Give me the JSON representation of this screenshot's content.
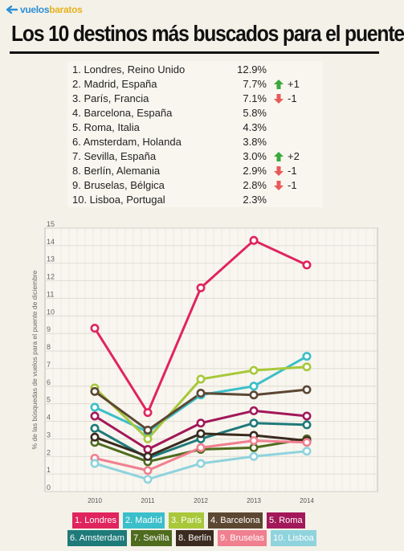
{
  "logo": {
    "part1": "vuelos",
    "part2": "baratos",
    "arrow_color": "#2b8fd6"
  },
  "title": "Los 10 destinos más buscados para el puente",
  "ranking": [
    {
      "label": "1. Londres, Reino Unido",
      "percent": "12.9%",
      "trend": "",
      "change": ""
    },
    {
      "label": "2. Madrid, España",
      "percent": "7.7%",
      "trend": "up",
      "change": "+1"
    },
    {
      "label": "3. París, Francia",
      "percent": "7.1%",
      "trend": "down",
      "change": "-1"
    },
    {
      "label": "4. Barcelona, España",
      "percent": "5.8%",
      "trend": "",
      "change": ""
    },
    {
      "label": "5. Roma, Italia",
      "percent": "4.3%",
      "trend": "",
      "change": ""
    },
    {
      "label": "6. Amsterdam, Holanda",
      "percent": "3.8%",
      "trend": "",
      "change": ""
    },
    {
      "label": "7. Sevilla, España",
      "percent": "3.0%",
      "trend": "up",
      "change": "+2"
    },
    {
      "label": "8. Berlín, Alemania",
      "percent": "2.9%",
      "trend": "down",
      "change": "-1"
    },
    {
      "label": "9. Bruselas, Bélgica",
      "percent": "2.8%",
      "trend": "down",
      "change": "-1"
    },
    {
      "label": "10. Lisboa, Portugal",
      "percent": "2.3%",
      "trend": "",
      "change": ""
    }
  ],
  "trend_colors": {
    "up": "#3aa83a",
    "down": "#e85a5a"
  },
  "chart_data": {
    "type": "line",
    "x": [
      "2010",
      "2011",
      "2012",
      "2013",
      "2014"
    ],
    "ylabel": "% de las búsquedas de vuelos para el puente de diciembre",
    "ylim": [
      0,
      15
    ],
    "yticks": [
      0,
      1,
      2,
      3,
      4,
      5,
      6,
      7,
      8,
      9,
      10,
      11,
      12,
      13,
      14,
      15
    ],
    "grid": true,
    "legend_position": "bottom",
    "series": [
      {
        "name": "1. Londres",
        "color": "#e0245e",
        "values": [
          9.3,
          4.5,
          11.6,
          14.3,
          12.9
        ]
      },
      {
        "name": "2. Madrid",
        "color": "#3bbfca",
        "values": [
          4.8,
          3.4,
          5.5,
          6.0,
          7.7
        ]
      },
      {
        "name": "3. París",
        "color": "#a8c83a",
        "values": [
          5.9,
          3.0,
          6.4,
          6.9,
          7.1
        ]
      },
      {
        "name": "4. Barcelona",
        "color": "#5c4733",
        "values": [
          5.7,
          3.5,
          5.6,
          5.5,
          5.8
        ]
      },
      {
        "name": "5. Roma",
        "color": "#a2185a",
        "values": [
          4.3,
          2.4,
          3.9,
          4.6,
          4.3
        ]
      },
      {
        "name": "6. Amsterdam",
        "color": "#1f7a7a",
        "values": [
          3.6,
          1.9,
          3.0,
          3.9,
          3.8
        ]
      },
      {
        "name": "7. Sevilla",
        "color": "#4e6b1e",
        "values": [
          2.8,
          1.7,
          2.4,
          2.5,
          3.0
        ]
      },
      {
        "name": "8. Berlín",
        "color": "#3a2a1f",
        "values": [
          3.1,
          2.0,
          3.3,
          3.2,
          2.9
        ]
      },
      {
        "name": "9. Bruselas",
        "color": "#f07f8f",
        "values": [
          1.9,
          1.2,
          2.5,
          2.9,
          2.8
        ]
      },
      {
        "name": "10. Lisboa",
        "color": "#8fd3dd",
        "values": [
          1.6,
          0.7,
          1.6,
          2.0,
          2.3
        ]
      }
    ]
  }
}
